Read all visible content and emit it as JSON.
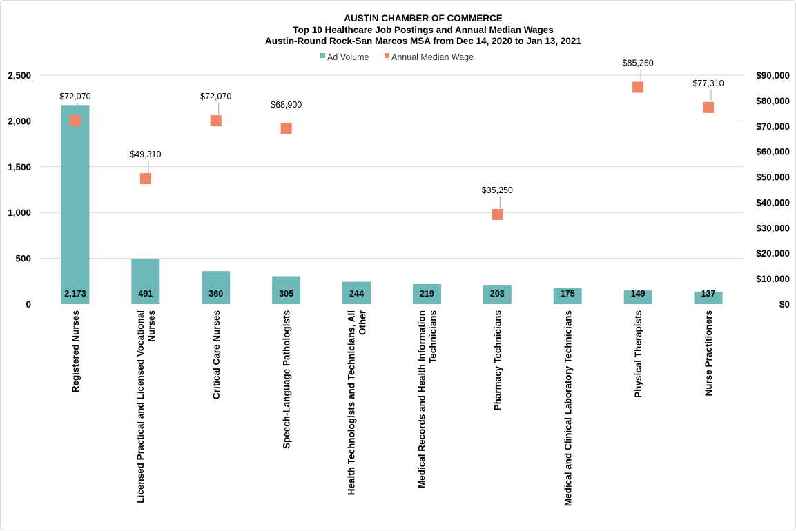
{
  "chart_data": {
    "type": "bar",
    "title": "AUSTIN CHAMBER OF COMMERCE",
    "subtitle_lines": [
      "Top 10 Healthcare Job Postings and Annual  Median Wages",
      "Austin-Round Rock-San Marcos MSA from Dec 14, 2020 to Jan 13, 2021"
    ],
    "categories": [
      [
        "Registered Nurses"
      ],
      [
        "Licensed Practical and Licensed Vocational",
        "Nurses"
      ],
      [
        "Critical Care Nurses"
      ],
      [
        "Speech-Language Pathologists"
      ],
      [
        "Health Technologists and Technicians, All",
        "Other"
      ],
      [
        "Medical Records and Health Information",
        "Technicians"
      ],
      [
        "Pharmacy Technicians"
      ],
      [
        "Medical and Clinical Laboratory Technicians"
      ],
      [
        "Physical Therapists"
      ],
      [
        "Nurse Practitioners"
      ]
    ],
    "series": [
      {
        "name": "Ad Volume",
        "type": "bar",
        "axis": "left",
        "color": "#6cb9b7",
        "values": [
          2173,
          491,
          360,
          305,
          244,
          219,
          203,
          175,
          149,
          137
        ],
        "labels": [
          "2,173",
          "491",
          "360",
          "305",
          "244",
          "219",
          "203",
          "175",
          "149",
          "137"
        ]
      },
      {
        "name": "Annual Median Wage",
        "type": "scatter",
        "marker": "square",
        "axis": "right",
        "color": "#f08466",
        "values": [
          72070,
          49310,
          72070,
          68900,
          null,
          null,
          35250,
          null,
          85260,
          77310
        ],
        "labels": [
          "$72,070",
          "$49,310",
          "$72,070",
          "$68,900",
          "",
          "",
          "$35,250",
          "",
          "$85,260",
          "$77,310"
        ]
      }
    ],
    "y_left": {
      "ylim": [
        0,
        2500
      ],
      "ticks": [
        0,
        500,
        1000,
        1500,
        2000,
        2500
      ],
      "tick_labels": [
        "0",
        "500",
        "1,000",
        "1,500",
        "2,000",
        "2,500"
      ]
    },
    "y_right": {
      "ylim": [
        0,
        90000
      ],
      "ticks": [
        0,
        10000,
        20000,
        30000,
        40000,
        50000,
        60000,
        70000,
        80000,
        90000
      ],
      "tick_labels": [
        "$0",
        "$10,000",
        "$20,000",
        "$30,000",
        "$40,000",
        "$50,000",
        "$60,000",
        "$70,000",
        "$80,000",
        "$90,000"
      ]
    },
    "xlabel": "",
    "ylabel": "",
    "grid": "horizontal",
    "legend_position": "top-center",
    "background": "#ffffff",
    "grid_color": "#d9d9d9"
  }
}
